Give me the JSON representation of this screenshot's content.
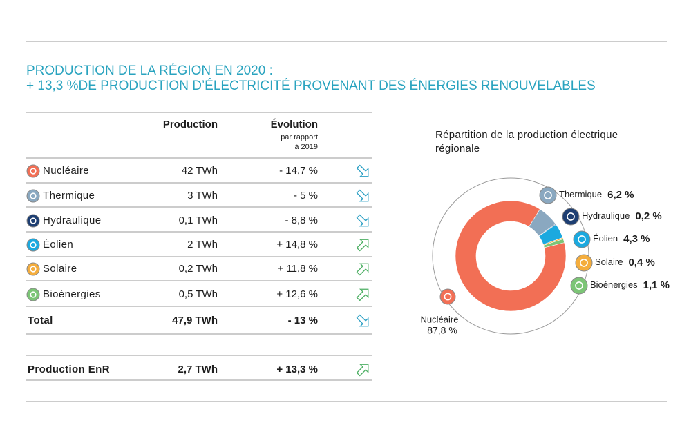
{
  "header": {
    "title_lines": [
      "PRODUCTION DE LA RÉGION EN 2020 :",
      "+ 13,3 %DE PRODUCTION D’ÉLECTRICITÉ PROVENANT DES ÉNERGIES  RENOUVELABLES"
    ]
  },
  "table": {
    "headers": {
      "production": "Production",
      "evolution": "Évolution",
      "evolution_note_lines": [
        "par rapport",
        "à 2019"
      ]
    },
    "rows": [
      [
        "Nucléaire",
        "42 TWh",
        "- 14,7 %"
      ],
      [
        "Thermique",
        "3 TWh",
        "- 5 %"
      ],
      [
        "Hydraulique",
        "0,1 TWh",
        "- 8,8 %"
      ],
      [
        "Éolien",
        "2  TWh",
        "+ 14,8 %"
      ],
      [
        "Solaire",
        "0,2 TWh",
        "+ 11,8 %"
      ],
      [
        "Bioénergies",
        "0,5 TWh",
        "+ 12,6 %"
      ],
      [
        "Total",
        "47,9 TWh",
        "- 13 %"
      ],
      [
        "Production EnR",
        "2,7 TWh",
        "+ 13,3 %"
      ]
    ]
  },
  "chart_data": {
    "type": "pie",
    "title": "Répartition de la production électrique régionale",
    "categories": [
      "Nucléaire",
      "Thermique",
      "Hydraulique",
      "Éolien",
      "Solaire",
      "Bioénergies"
    ],
    "values": [
      87.8,
      6.2,
      0.2,
      4.3,
      0.4,
      1.1
    ],
    "value_labels": [
      "87,8 %",
      "6,2 %",
      "0,2 %",
      "4,3 %",
      "0,4 %",
      "1,1 %"
    ],
    "colors": [
      "#f26f55",
      "#8aa8c0",
      "#1d3e72",
      "#1ba9df",
      "#f4ad3d",
      "#7cc576"
    ]
  }
}
